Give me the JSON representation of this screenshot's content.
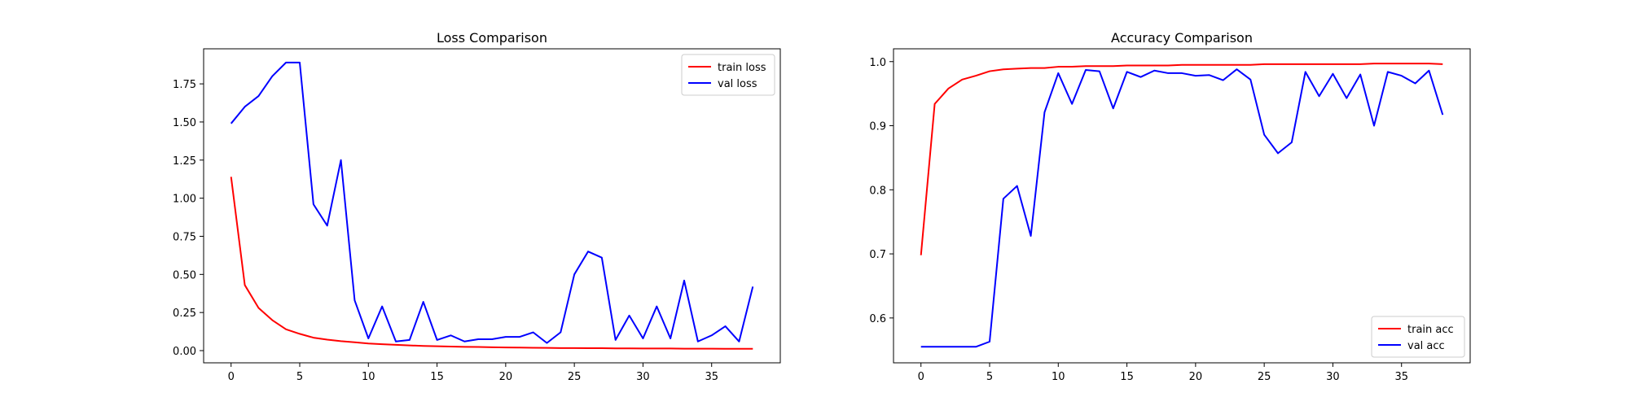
{
  "chart_data": [
    {
      "type": "line",
      "title": "Loss Comparison",
      "xlabel": "",
      "ylabel": "",
      "xlim": [
        -2,
        40
      ],
      "ylim": [
        -0.08,
        1.98
      ],
      "xticks": [
        0,
        5,
        10,
        15,
        20,
        25,
        30,
        35
      ],
      "yticks": [
        0.0,
        0.25,
        0.5,
        0.75,
        1.0,
        1.25,
        1.5,
        1.75
      ],
      "ytick_labels": [
        "0.00",
        "0.25",
        "0.50",
        "0.75",
        "1.00",
        "1.25",
        "1.50",
        "1.75"
      ],
      "grid": false,
      "legend_position": "upper right",
      "series": [
        {
          "name": "train loss",
          "color": "#ff0000",
          "x": [
            0,
            1,
            2,
            3,
            4,
            5,
            6,
            7,
            8,
            9,
            10,
            11,
            12,
            13,
            14,
            15,
            16,
            17,
            18,
            19,
            20,
            21,
            22,
            23,
            24,
            25,
            26,
            27,
            28,
            29,
            30,
            31,
            32,
            33,
            34,
            35,
            36,
            37,
            38
          ],
          "y": [
            1.14,
            0.43,
            0.28,
            0.2,
            0.14,
            0.11,
            0.085,
            0.072,
            0.062,
            0.055,
            0.047,
            0.042,
            0.038,
            0.034,
            0.031,
            0.029,
            0.027,
            0.025,
            0.024,
            0.022,
            0.021,
            0.02,
            0.019,
            0.018,
            0.017,
            0.017,
            0.016,
            0.016,
            0.015,
            0.015,
            0.014,
            0.014,
            0.014,
            0.013,
            0.013,
            0.013,
            0.012,
            0.012,
            0.012
          ]
        },
        {
          "name": "val loss",
          "color": "#0000ff",
          "x": [
            0,
            1,
            2,
            3,
            4,
            5,
            6,
            7,
            8,
            9,
            10,
            11,
            12,
            13,
            14,
            15,
            16,
            17,
            18,
            19,
            20,
            21,
            22,
            23,
            24,
            25,
            26,
            27,
            28,
            29,
            30,
            31,
            32,
            33,
            34,
            35,
            36,
            37,
            38
          ],
          "y": [
            1.49,
            1.6,
            1.67,
            1.8,
            1.89,
            1.89,
            0.96,
            0.82,
            1.25,
            0.33,
            0.08,
            0.29,
            0.06,
            0.07,
            0.32,
            0.07,
            0.1,
            0.06,
            0.075,
            0.075,
            0.09,
            0.09,
            0.12,
            0.05,
            0.12,
            0.5,
            0.65,
            0.61,
            0.07,
            0.23,
            0.08,
            0.29,
            0.08,
            0.46,
            0.06,
            0.1,
            0.16,
            0.06,
            0.42
          ]
        }
      ]
    },
    {
      "type": "line",
      "title": "Accuracy Comparison",
      "xlabel": "",
      "ylabel": "",
      "xlim": [
        -2,
        40
      ],
      "ylim": [
        0.53,
        1.02
      ],
      "xticks": [
        0,
        5,
        10,
        15,
        20,
        25,
        30,
        35
      ],
      "yticks": [
        0.6,
        0.7,
        0.8,
        0.9,
        1.0
      ],
      "ytick_labels": [
        "0.6",
        "0.7",
        "0.8",
        "0.9",
        "1.0"
      ],
      "grid": false,
      "legend_position": "lower right",
      "series": [
        {
          "name": "train acc",
          "color": "#ff0000",
          "x": [
            0,
            1,
            2,
            3,
            4,
            5,
            6,
            7,
            8,
            9,
            10,
            11,
            12,
            13,
            14,
            15,
            16,
            17,
            18,
            19,
            20,
            21,
            22,
            23,
            24,
            25,
            26,
            27,
            28,
            29,
            30,
            31,
            32,
            33,
            34,
            35,
            36,
            37,
            38
          ],
          "y": [
            0.698,
            0.934,
            0.958,
            0.972,
            0.978,
            0.985,
            0.988,
            0.989,
            0.99,
            0.99,
            0.992,
            0.992,
            0.993,
            0.993,
            0.993,
            0.994,
            0.994,
            0.994,
            0.994,
            0.995,
            0.995,
            0.995,
            0.995,
            0.995,
            0.995,
            0.996,
            0.996,
            0.996,
            0.996,
            0.996,
            0.996,
            0.996,
            0.996,
            0.997,
            0.997,
            0.997,
            0.997,
            0.997,
            0.996
          ]
        },
        {
          "name": "val acc",
          "color": "#0000ff",
          "x": [
            0,
            1,
            2,
            3,
            4,
            5,
            6,
            7,
            8,
            9,
            10,
            11,
            12,
            13,
            14,
            15,
            16,
            17,
            18,
            19,
            20,
            21,
            22,
            23,
            24,
            25,
            26,
            27,
            28,
            29,
            30,
            31,
            32,
            33,
            34,
            35,
            36,
            37,
            38
          ],
          "y": [
            0.555,
            0.555,
            0.555,
            0.555,
            0.555,
            0.563,
            0.786,
            0.806,
            0.728,
            0.921,
            0.982,
            0.934,
            0.987,
            0.985,
            0.927,
            0.984,
            0.976,
            0.986,
            0.982,
            0.982,
            0.978,
            0.979,
            0.971,
            0.988,
            0.972,
            0.886,
            0.857,
            0.874,
            0.984,
            0.946,
            0.981,
            0.943,
            0.98,
            0.9,
            0.984,
            0.978,
            0.966,
            0.986,
            0.917
          ]
        }
      ]
    }
  ]
}
